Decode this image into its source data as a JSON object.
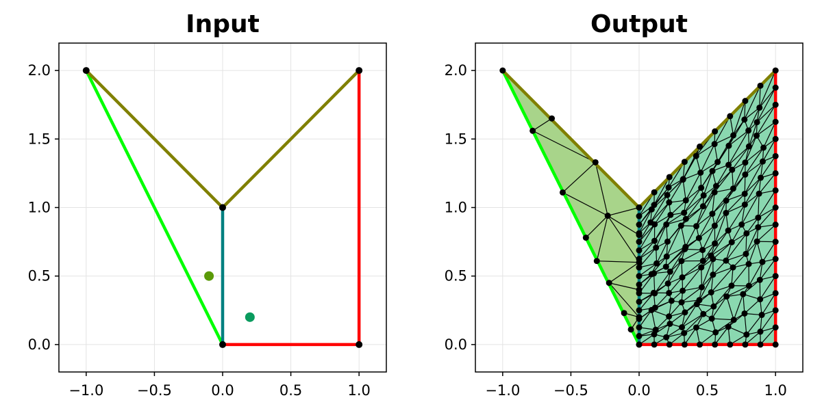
{
  "chart_data": [
    {
      "type": "line",
      "title": "Input",
      "xlabel": "",
      "ylabel": "",
      "xlim": [
        -1.2,
        1.2
      ],
      "ylim": [
        -0.2,
        2.2
      ],
      "grid": true,
      "xticks": [
        -1.0,
        -0.5,
        0.0,
        0.5,
        1.0
      ],
      "yticks": [
        0.0,
        0.5,
        1.0,
        1.5,
        2.0
      ],
      "xtick_labels": [
        "−1.0",
        "−0.5",
        "0.0",
        "0.5",
        "1.0"
      ],
      "ytick_labels": [
        "0.0",
        "0.5",
        "1.0",
        "1.5",
        "2.0"
      ],
      "segments": [
        {
          "from": [
            -1,
            2
          ],
          "to": [
            0,
            0
          ],
          "color": "#00ff00"
        },
        {
          "from": [
            -1,
            2
          ],
          "to": [
            0,
            1
          ],
          "color": "#808000"
        },
        {
          "from": [
            0,
            1
          ],
          "to": [
            1,
            2
          ],
          "color": "#808000"
        },
        {
          "from": [
            0,
            1
          ],
          "to": [
            0,
            0
          ],
          "color": "#008080"
        },
        {
          "from": [
            0,
            0
          ],
          "to": [
            1,
            0
          ],
          "color": "#ff0000"
        },
        {
          "from": [
            1,
            0
          ],
          "to": [
            1,
            2
          ],
          "color": "#ff0000"
        }
      ],
      "vertices": [
        [
          -1,
          2
        ],
        [
          1,
          2
        ],
        [
          0,
          1
        ],
        [
          0,
          0
        ],
        [
          1,
          0
        ]
      ],
      "markers": [
        {
          "x": -0.1,
          "y": 0.5,
          "color": "#5a9a08"
        },
        {
          "x": 0.2,
          "y": 0.2,
          "color": "#0a9b5e"
        }
      ]
    },
    {
      "type": "scatter",
      "title": "Output",
      "xlabel": "",
      "ylabel": "",
      "xlim": [
        -1.2,
        1.2
      ],
      "ylim": [
        -0.2,
        2.2
      ],
      "grid": true,
      "xticks": [
        -1.0,
        -0.5,
        0.0,
        0.5,
        1.0
      ],
      "yticks": [
        0.0,
        0.5,
        1.0,
        1.5,
        2.0
      ],
      "xtick_labels": [
        "−1.0",
        "−0.5",
        "0.0",
        "0.5",
        "1.0"
      ],
      "ytick_labels": [
        "0.0",
        "0.5",
        "1.0",
        "1.5",
        "2.0"
      ],
      "regions": [
        {
          "polygon": [
            [
              -1,
              2
            ],
            [
              0,
              1
            ],
            [
              0,
              0
            ]
          ],
          "fill": "#a8d48a"
        },
        {
          "polygon": [
            [
              0,
              1
            ],
            [
              1,
              2
            ],
            [
              1,
              0
            ],
            [
              0,
              0
            ]
          ],
          "fill": "#8ad8b0"
        }
      ],
      "segments": [
        {
          "from": [
            -1,
            2
          ],
          "to": [
            0,
            0
          ],
          "color": "#00ff00"
        },
        {
          "from": [
            -1,
            2
          ],
          "to": [
            0,
            1
          ],
          "color": "#808000"
        },
        {
          "from": [
            0,
            1
          ],
          "to": [
            1,
            2
          ],
          "color": "#808000"
        },
        {
          "from": [
            0,
            1
          ],
          "to": [
            0,
            0
          ],
          "color": "#008080"
        },
        {
          "from": [
            0,
            0
          ],
          "to": [
            1,
            0
          ],
          "color": "#ff0000"
        },
        {
          "from": [
            1,
            0
          ],
          "to": [
            1,
            2
          ],
          "color": "#ff0000"
        }
      ],
      "mesh": {
        "left_rows": [
          3,
          3,
          3
        ],
        "right_nx": 9,
        "right_ny": 16,
        "edge_color": "#000000"
      }
    }
  ]
}
